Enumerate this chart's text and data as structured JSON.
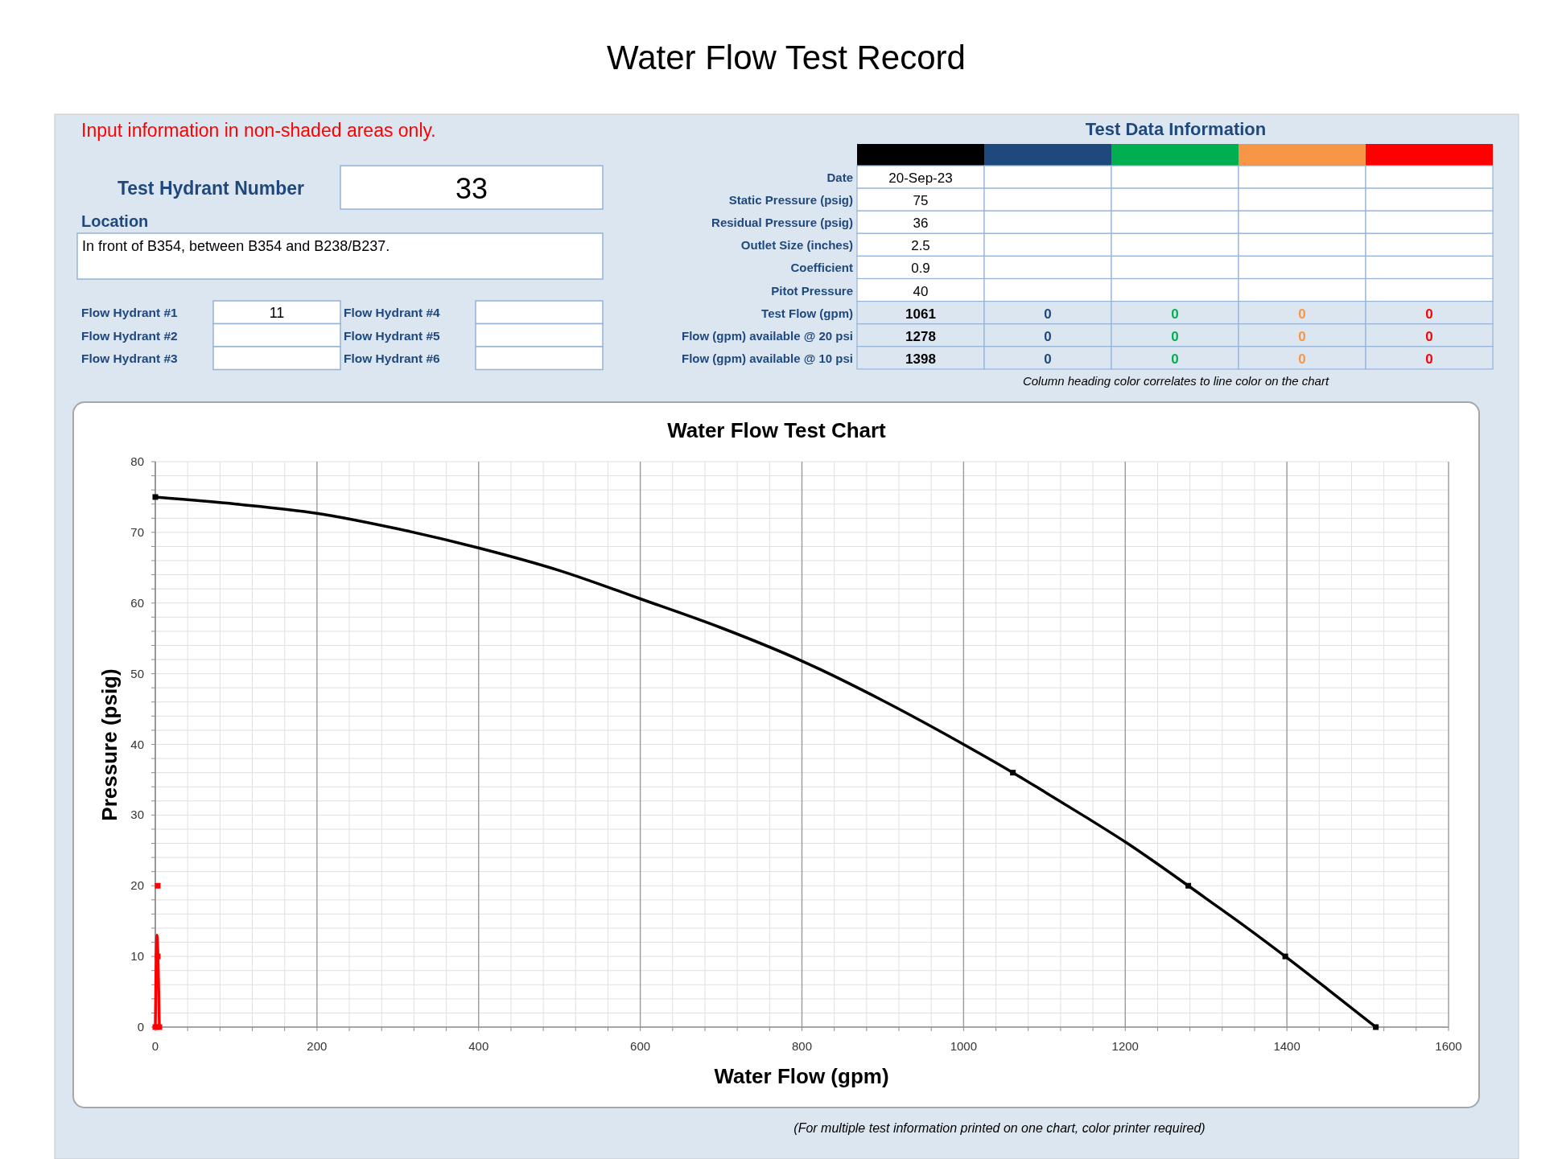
{
  "chart_data": [
    {
      "type": "other",
      "title": "Water Flow Test Record",
      "annotations": [
        "Input information in non-shaded areas only."
      ],
      "y_categories": [
        "Test Hydrant Number",
        "Location",
        "Flow Hydrant #1",
        "Flow Hydrant #2",
        "Flow Hydrant #3",
        "Flow Hydrant #4",
        "Flow Hydrant #5",
        "Flow Hydrant #6"
      ],
      "cell_labels": [
        [
          "33"
        ],
        [
          "In front of B354, between B354 and B238/B237."
        ],
        [
          "11"
        ],
        [
          null
        ],
        [
          null
        ],
        [
          null
        ],
        [
          null
        ],
        [
          null
        ]
      ]
    },
    {
      "type": "other",
      "title": "Test Data Information",
      "colors": [
        "#000000",
        "#1f497d",
        "#00b050",
        "#f79646",
        "#ff0000"
      ],
      "y_categories": [
        "Date",
        "Static Pressure (psig)",
        "Residual Pressure (psig)",
        "Outlet Size (inches)",
        "Coefficient",
        "Pitot Pressure",
        "Test Flow (gpm)",
        "Flow (gpm) available @ 20 psi",
        "Flow (gpm) available @ 10 psi"
      ],
      "cell_labels": [
        [
          "20-Sep-23",
          null,
          null,
          null,
          null
        ],
        [
          "75",
          null,
          null,
          null,
          null
        ],
        [
          "36",
          null,
          null,
          null,
          null
        ],
        [
          "2.5",
          null,
          null,
          null,
          null
        ],
        [
          "0.9",
          null,
          null,
          null,
          null
        ],
        [
          "40",
          null,
          null,
          null,
          null
        ],
        [
          "1061",
          "0",
          "0",
          "0",
          "0"
        ],
        [
          "1278",
          "0",
          "0",
          "0",
          "0"
        ],
        [
          "1398",
          "0",
          "0",
          "0",
          "0"
        ]
      ],
      "annotations": [
        "Column heading color correlates to line color on the chart"
      ]
    },
    {
      "type": "line",
      "title": "Water Flow Test Chart",
      "xlabel": "Water Flow (gpm)",
      "ylabel": "Pressure (psig)",
      "xlim": [
        0,
        1600
      ],
      "ylim": [
        0,
        80
      ],
      "xticks": [
        0,
        {
          "value": 40,
          "label": null
        },
        {
          "value": 80,
          "label": null
        },
        {
          "value": 120,
          "label": null
        },
        {
          "value": 160,
          "label": null
        },
        200,
        {
          "value": 240,
          "label": null
        },
        {
          "value": 280,
          "label": null
        },
        {
          "value": 320,
          "label": null
        },
        {
          "value": 360,
          "label": null
        },
        400,
        {
          "value": 440,
          "label": null
        },
        {
          "value": 480,
          "label": null
        },
        {
          "value": 520,
          "label": null
        },
        {
          "value": 560,
          "label": null
        },
        600,
        {
          "value": 640,
          "label": null
        },
        {
          "value": 680,
          "label": null
        },
        {
          "value": 720,
          "label": null
        },
        {
          "value": 760,
          "label": null
        },
        800,
        {
          "value": 840,
          "label": null
        },
        {
          "value": 880,
          "label": null
        },
        {
          "value": 920,
          "label": null
        },
        {
          "value": 960,
          "label": null
        },
        1000,
        {
          "value": 1040,
          "label": null
        },
        {
          "value": 1080,
          "label": null
        },
        {
          "value": 1120,
          "label": null
        },
        {
          "value": 1160,
          "label": null
        },
        1200,
        {
          "value": 1240,
          "label": null
        },
        {
          "value": 1280,
          "label": null
        },
        {
          "value": 1320,
          "label": null
        },
        {
          "value": 1360,
          "label": null
        },
        1400,
        {
          "value": 1440,
          "label": null
        },
        {
          "value": 1480,
          "label": null
        },
        {
          "value": 1520,
          "label": null
        },
        {
          "value": 1560,
          "label": null
        },
        1600
      ],
      "yticks": [
        0,
        {
          "value": 2,
          "label": null
        },
        {
          "value": 4,
          "label": null
        },
        {
          "value": 6,
          "label": null
        },
        {
          "value": 8,
          "label": null
        },
        10,
        {
          "value": 12,
          "label": null
        },
        {
          "value": 14,
          "label": null
        },
        {
          "value": 16,
          "label": null
        },
        {
          "value": 18,
          "label": null
        },
        20,
        {
          "value": 22,
          "label": null
        },
        {
          "value": 24,
          "label": null
        },
        {
          "value": 26,
          "label": null
        },
        {
          "value": 28,
          "label": null
        },
        30,
        {
          "value": 32,
          "label": null
        },
        {
          "value": 34,
          "label": null
        },
        {
          "value": 36,
          "label": null
        },
        {
          "value": 38,
          "label": null
        },
        40,
        {
          "value": 42,
          "label": null
        },
        {
          "value": 44,
          "label": null
        },
        {
          "value": 46,
          "label": null
        },
        {
          "value": 48,
          "label": null
        },
        50,
        {
          "value": 52,
          "label": null
        },
        {
          "value": 54,
          "label": null
        },
        {
          "value": 56,
          "label": null
        },
        {
          "value": 58,
          "label": null
        },
        60,
        {
          "value": 62,
          "label": null
        },
        {
          "value": 64,
          "label": null
        },
        {
          "value": 66,
          "label": null
        },
        {
          "value": 68,
          "label": null
        },
        70,
        {
          "value": 72,
          "label": null
        },
        {
          "value": 74,
          "label": null
        },
        {
          "value": 76,
          "label": null
        },
        {
          "value": 78,
          "label": null
        },
        80
      ],
      "grid": true,
      "series": [
        {
          "type": "line",
          "color": "#000000",
          "x": [
            0,
            100,
            200,
            300,
            400,
            500,
            600,
            700,
            800,
            900,
            1000,
            1061,
            1100,
            1150,
            1200,
            1278,
            1300,
            1350,
            1398,
            1450,
            1510
          ],
          "values": [
            75,
            74,
            72.7,
            70.5,
            67.8,
            64.6,
            60.6,
            56.5,
            51.8,
            46.2,
            40,
            36,
            33.3,
            29.8,
            26.2,
            20,
            18.2,
            14.1,
            10,
            5.4,
            0
          ]
        },
        {
          "type": "scatter",
          "color": "#000000",
          "marker": "square",
          "x": [
            0,
            1061,
            1278,
            1398,
            1510
          ],
          "values": [
            75,
            36,
            20,
            10,
            0
          ]
        },
        {
          "type": "line",
          "color": "#ff0000",
          "x": [
            0,
            2,
            5
          ],
          "values": [
            0,
            13,
            0
          ]
        },
        {
          "type": "scatter",
          "color": "#ff0000",
          "marker": "square",
          "x": [
            3,
            3,
            0,
            5
          ],
          "values": [
            20,
            10,
            0,
            0
          ]
        }
      ],
      "annotations": [
        "(For multiple test information printed on one chart, color printer required)"
      ]
    }
  ]
}
